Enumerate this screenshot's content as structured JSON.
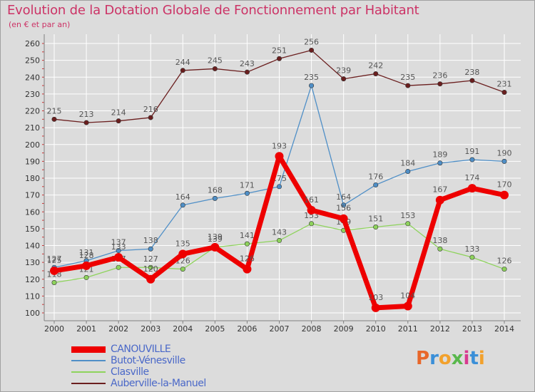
{
  "title": "Evolution de la Dotation Globale de Fonctionnement par Habitant",
  "subtitle": "(en € et par an)",
  "logo": {
    "text": "Proxiti",
    "colors": [
      "#e8672a",
      "#3a8fd8",
      "#f2a12c",
      "#59b84c",
      "#d83a8f",
      "#3a8fd8",
      "#f2a12c"
    ]
  },
  "colors": {
    "background": "#dcdcdc",
    "grid": "#ffffff",
    "axis": "#808080",
    "tick_text": "#333333",
    "value_text": "#555555"
  },
  "chart_data": {
    "type": "line",
    "x": [
      2000,
      2001,
      2002,
      2003,
      2004,
      2005,
      2006,
      2007,
      2008,
      2009,
      2010,
      2011,
      2012,
      2013,
      2014
    ],
    "ylim": [
      100,
      260
    ],
    "yticks": [
      100,
      110,
      120,
      130,
      140,
      150,
      160,
      170,
      180,
      190,
      200,
      210,
      220,
      230,
      240,
      250,
      260
    ],
    "grid": true,
    "legend_position": "bottom-left",
    "series": [
      {
        "name": "Auberville-la-Manuel",
        "color": "#6b1f1f",
        "values": [
          215,
          213,
          214,
          216,
          244,
          245,
          243,
          251,
          256,
          239,
          242,
          235,
          236,
          238,
          231
        ]
      },
      {
        "name": "Butot-Vénesville",
        "color": "#4f8fc7",
        "values": [
          127,
          131,
          137,
          138,
          164,
          168,
          171,
          175,
          235,
          164,
          176,
          184,
          189,
          191,
          190
        ]
      },
      {
        "name": "Clasville",
        "color": "#8ed35c",
        "values": [
          118,
          121,
          127,
          127,
          126,
          139,
          141,
          143,
          153,
          149,
          151,
          153,
          138,
          133,
          126
        ]
      },
      {
        "name": "CANOUVILLE",
        "color": "#ee0000",
        "values": [
          125,
          128,
          133,
          120,
          135,
          139,
          126,
          193,
          161,
          156,
          103,
          104,
          167,
          174,
          170
        ]
      }
    ]
  }
}
